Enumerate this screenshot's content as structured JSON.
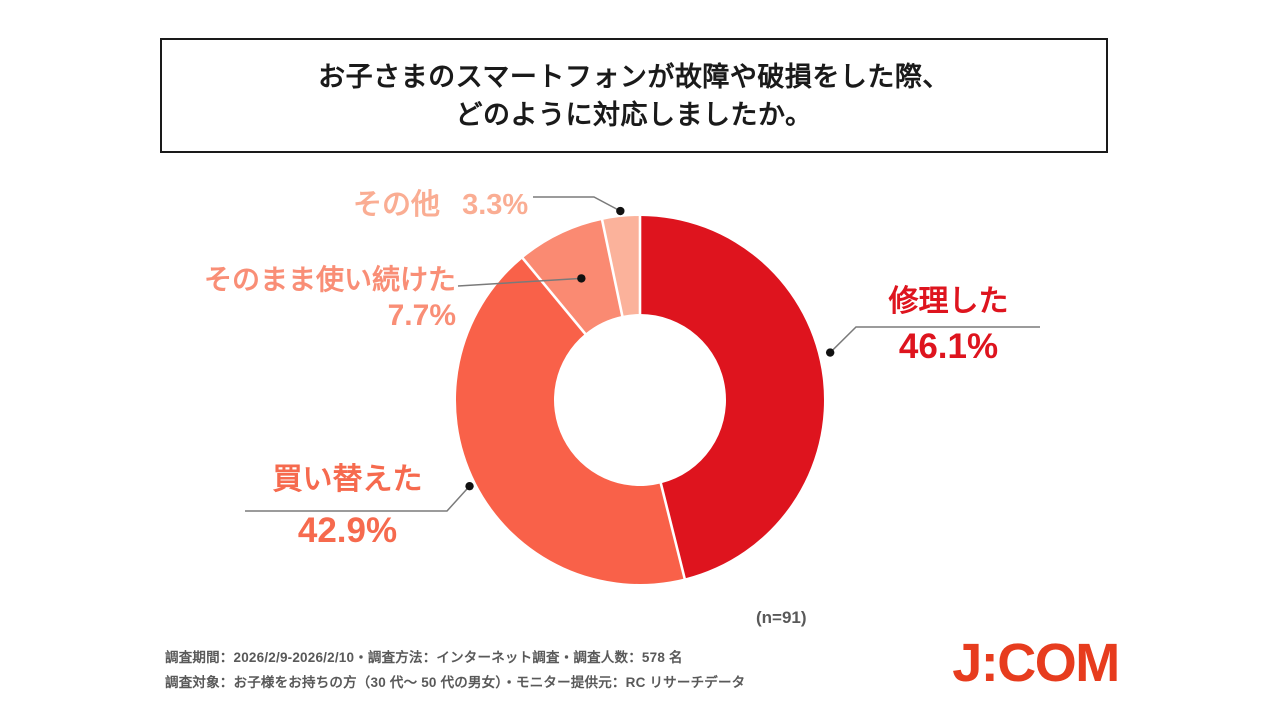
{
  "title": {
    "line1": "お子さまのスマートフォンが故障や破損をした際、",
    "line2": "どのように対応しましたか。"
  },
  "chart_data": {
    "type": "pie",
    "subtype": "donut",
    "title": "お子さまのスマートフォンが故障や破損をした際、どのように対応しましたか。",
    "n_label": "(n=91)",
    "start_angle_deg": 0,
    "direction": "clockwise",
    "donut_hole_ratio": 0.47,
    "segments": [
      {
        "label": "修理した",
        "value": 46.1,
        "pct_text": "46.1%",
        "color": "#DE141E",
        "label_color": "#DE141E"
      },
      {
        "label": "買い替えた",
        "value": 42.9,
        "pct_text": "42.9%",
        "color": "#F96149",
        "label_color": "#F66A4E"
      },
      {
        "label": "そのまま使い続けた",
        "value": 7.7,
        "pct_text": "7.7%",
        "color": "#FA8A72",
        "label_color": "#F98E76"
      },
      {
        "label": "その他",
        "value": 3.3,
        "pct_text": "3.3%",
        "color": "#FBB29B",
        "label_color": "#FAAD93"
      }
    ]
  },
  "footer": {
    "line1": "調査期間：2026/2/9-2026/2/10・調査方法：インターネット調査・調査人数：578 名",
    "line2": "調査対象：お子様をお持ちの方（30 代～ 50 代の男女）・モニター提供元：RC リサーチデータ"
  },
  "logo": {
    "text": "J:COM",
    "color": "#E73C1E"
  }
}
